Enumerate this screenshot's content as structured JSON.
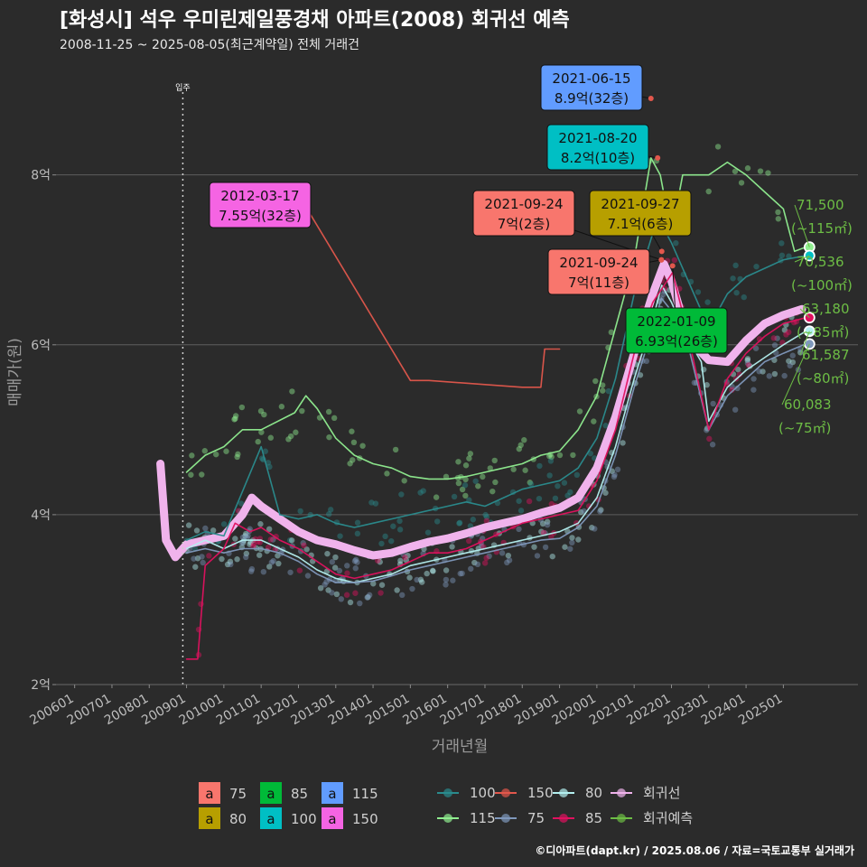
{
  "title": "[화성시] 석우 우미린제일풍경채 아파트(2008) 회귀선 예측",
  "subtitle": "2008-11-25 ~ 2025-08-05(최근계약일) 전체 거래건",
  "footer": "©디아파트(dapt.kr) / 2025.08.06 / 자료=국토교통부 실거래가",
  "chart_data": {
    "type": "line",
    "xlabel": "거래년월",
    "ylabel": "매매가(원)",
    "ylim": [
      2,
      9.4
    ],
    "xlim": [
      2005.5,
      2027.0
    ],
    "grid": true,
    "x_ticks": [
      "200601",
      "200701",
      "200801",
      "200901",
      "201001",
      "201101",
      "201201",
      "201301",
      "201401",
      "201501",
      "201601",
      "201701",
      "201801",
      "201901",
      "202001",
      "202101",
      "202201",
      "202301",
      "202401",
      "202501"
    ],
    "y_ticks": [
      {
        "value": 2,
        "label": "2억"
      },
      {
        "value": 4,
        "label": "4억"
      },
      {
        "value": 6,
        "label": "6억"
      },
      {
        "value": 8,
        "label": "8억"
      }
    ],
    "move_in": {
      "x": 2008.9,
      "label": "입주"
    },
    "callouts": [
      {
        "date": "2021-06-15",
        "text": "8.9억(32층)",
        "area": "115",
        "x": 2021.45,
        "y": 8.9
      },
      {
        "date": "2021-08-20",
        "text": "8.2억(10층)",
        "area": "100",
        "x": 2021.63,
        "y": 8.2
      },
      {
        "date": "2012-03-17",
        "text": "7.55억(32층)",
        "area": "150",
        "x": 2012.2,
        "y": 7.55
      },
      {
        "date": "2021-09-24",
        "text": "7억(2층)",
        "area": "75",
        "x": 2021.73,
        "y": 7.0
      },
      {
        "date": "2021-09-27",
        "text": "7.1억(6층)",
        "area": "80",
        "x": 2021.74,
        "y": 7.1
      },
      {
        "date": "2021-09-24",
        "text": "7억(11층)",
        "area": "75",
        "x": 2021.73,
        "y": 7.0
      },
      {
        "date": "2022-01-09",
        "text": "6.93억(26층)",
        "area": "85",
        "x": 2022.03,
        "y": 6.93
      }
    ],
    "predictions": [
      {
        "value": "71,500",
        "area": "(~115㎡)",
        "y": 7.15
      },
      {
        "value": "70,536",
        "area": "(~100㎡)",
        "y": 7.05
      },
      {
        "value": "63,180",
        "area": "(~85㎡)",
        "y": 6.32
      },
      {
        "value": "61,587",
        "area": "(~80㎡)",
        "y": 6.16
      },
      {
        "value": "60,083",
        "area": "(~75㎡)",
        "y": 6.01
      }
    ],
    "series": [
      {
        "name": "회귀선",
        "color": "#f0b3ec",
        "points": [
          [
            2008.3,
            4.6
          ],
          [
            2008.45,
            3.7
          ],
          [
            2008.7,
            3.5
          ],
          [
            2009.0,
            3.65
          ],
          [
            2009.5,
            3.7
          ],
          [
            2010.0,
            3.75
          ],
          [
            2010.5,
            4.0
          ],
          [
            2010.75,
            4.2
          ],
          [
            2011.0,
            4.1
          ],
          [
            2011.5,
            3.95
          ],
          [
            2012.0,
            3.8
          ],
          [
            2012.5,
            3.7
          ],
          [
            2013.0,
            3.65
          ],
          [
            2013.5,
            3.58
          ],
          [
            2014.0,
            3.52
          ],
          [
            2014.5,
            3.55
          ],
          [
            2015.0,
            3.62
          ],
          [
            2015.5,
            3.68
          ],
          [
            2016.0,
            3.72
          ],
          [
            2016.5,
            3.78
          ],
          [
            2017.0,
            3.85
          ],
          [
            2017.5,
            3.9
          ],
          [
            2018.0,
            3.95
          ],
          [
            2018.5,
            4.02
          ],
          [
            2019.0,
            4.08
          ],
          [
            2019.5,
            4.2
          ],
          [
            2020.0,
            4.55
          ],
          [
            2020.5,
            5.15
          ],
          [
            2021.0,
            5.9
          ],
          [
            2021.5,
            6.6
          ],
          [
            2021.8,
            6.95
          ],
          [
            2022.0,
            6.75
          ],
          [
            2022.3,
            6.3
          ],
          [
            2022.6,
            6.0
          ],
          [
            2023.0,
            5.82
          ],
          [
            2023.5,
            5.8
          ],
          [
            2024.0,
            6.05
          ],
          [
            2024.5,
            6.25
          ],
          [
            2025.0,
            6.35
          ],
          [
            2025.5,
            6.42
          ]
        ]
      },
      {
        "name": "115",
        "color": "#90ee90",
        "points": [
          [
            2009.0,
            4.5
          ],
          [
            2009.5,
            4.7
          ],
          [
            2010.0,
            4.8
          ],
          [
            2010.5,
            5.0
          ],
          [
            2011.0,
            5.0
          ],
          [
            2011.9,
            5.2
          ],
          [
            2012.2,
            5.4
          ],
          [
            2012.5,
            5.25
          ],
          [
            2013.0,
            4.9
          ],
          [
            2013.5,
            4.7
          ],
          [
            2014.0,
            4.6
          ],
          [
            2014.5,
            4.55
          ],
          [
            2015.0,
            4.45
          ],
          [
            2015.5,
            4.42
          ],
          [
            2016.0,
            4.42
          ],
          [
            2016.5,
            4.45
          ],
          [
            2017.0,
            4.5
          ],
          [
            2017.5,
            4.55
          ],
          [
            2018.0,
            4.6
          ],
          [
            2018.5,
            4.7
          ],
          [
            2019.0,
            4.75
          ],
          [
            2019.5,
            5.0
          ],
          [
            2020.0,
            5.4
          ],
          [
            2020.5,
            6.2
          ],
          [
            2021.0,
            7.0
          ],
          [
            2021.45,
            8.2
          ],
          [
            2021.7,
            8.0
          ],
          [
            2022.0,
            7.3
          ],
          [
            2022.3,
            8.0
          ],
          [
            2022.6,
            8.0
          ],
          [
            2023.0,
            8.0
          ],
          [
            2023.5,
            8.15
          ],
          [
            2024.0,
            8.0
          ],
          [
            2024.5,
            7.8
          ],
          [
            2025.0,
            7.6
          ],
          [
            2025.3,
            7.1
          ],
          [
            2025.6,
            7.15
          ]
        ]
      },
      {
        "name": "100",
        "color": "#2a8c8e",
        "points": [
          [
            2009.0,
            3.7
          ],
          [
            2009.5,
            3.8
          ],
          [
            2010.0,
            3.75
          ],
          [
            2011.0,
            4.8
          ],
          [
            2011.5,
            4.0
          ],
          [
            2012.0,
            3.95
          ],
          [
            2012.5,
            4.0
          ],
          [
            2013.0,
            3.9
          ],
          [
            2013.5,
            3.85
          ],
          [
            2014.0,
            3.9
          ],
          [
            2014.5,
            3.95
          ],
          [
            2015.0,
            4.0
          ],
          [
            2015.5,
            4.05
          ],
          [
            2016.0,
            4.1
          ],
          [
            2016.5,
            4.15
          ],
          [
            2017.0,
            4.1
          ],
          [
            2017.5,
            4.2
          ],
          [
            2018.0,
            4.3
          ],
          [
            2018.5,
            4.35
          ],
          [
            2019.0,
            4.4
          ],
          [
            2019.5,
            4.55
          ],
          [
            2020.0,
            4.9
          ],
          [
            2020.5,
            5.6
          ],
          [
            2021.0,
            6.6
          ],
          [
            2021.63,
            7.5
          ],
          [
            2022.0,
            7.2
          ],
          [
            2022.3,
            6.9
          ],
          [
            2023.0,
            6.2
          ],
          [
            2023.5,
            6.6
          ],
          [
            2024.0,
            6.8
          ],
          [
            2024.5,
            6.9
          ],
          [
            2025.0,
            7.0
          ],
          [
            2025.6,
            7.05
          ]
        ]
      },
      {
        "name": "150",
        "color": "#e2574c",
        "points": [
          [
            2012.0,
            7.55
          ],
          [
            2012.3,
            7.55
          ],
          [
            2015.0,
            5.58
          ],
          [
            2015.5,
            5.58
          ],
          [
            2018.0,
            5.5
          ],
          [
            2018.5,
            5.5
          ],
          [
            2018.6,
            5.95
          ],
          [
            2019.0,
            5.95
          ]
        ]
      },
      {
        "name": "80",
        "color": "#b4f0f0",
        "points": [
          [
            2009.0,
            3.6
          ],
          [
            2009.5,
            3.7
          ],
          [
            2010.0,
            3.6
          ],
          [
            2010.5,
            3.7
          ],
          [
            2011.0,
            3.7
          ],
          [
            2011.5,
            3.6
          ],
          [
            2012.0,
            3.5
          ],
          [
            2012.5,
            3.35
          ],
          [
            2013.0,
            3.25
          ],
          [
            2013.5,
            3.2
          ],
          [
            2014.0,
            3.25
          ],
          [
            2014.5,
            3.3
          ],
          [
            2015.0,
            3.4
          ],
          [
            2015.5,
            3.45
          ],
          [
            2016.0,
            3.5
          ],
          [
            2016.5,
            3.55
          ],
          [
            2017.0,
            3.6
          ],
          [
            2017.5,
            3.65
          ],
          [
            2018.0,
            3.7
          ],
          [
            2018.5,
            3.75
          ],
          [
            2019.0,
            3.8
          ],
          [
            2019.5,
            3.9
          ],
          [
            2020.0,
            4.2
          ],
          [
            2020.5,
            4.8
          ],
          [
            2021.0,
            5.6
          ],
          [
            2021.5,
            6.3
          ],
          [
            2021.74,
            6.7
          ],
          [
            2022.0,
            6.5
          ],
          [
            2022.4,
            6.1
          ],
          [
            2022.8,
            5.8
          ],
          [
            2023.0,
            5.1
          ],
          [
            2023.5,
            5.5
          ],
          [
            2024.0,
            5.7
          ],
          [
            2024.5,
            5.85
          ],
          [
            2025.0,
            6.0
          ],
          [
            2025.6,
            6.16
          ]
        ]
      },
      {
        "name": "75",
        "color": "#7f98bc",
        "points": [
          [
            2009.0,
            3.55
          ],
          [
            2009.5,
            3.6
          ],
          [
            2010.0,
            3.55
          ],
          [
            2010.5,
            3.6
          ],
          [
            2011.0,
            3.6
          ],
          [
            2011.5,
            3.55
          ],
          [
            2012.0,
            3.45
          ],
          [
            2012.5,
            3.3
          ],
          [
            2013.0,
            3.2
          ],
          [
            2013.5,
            3.2
          ],
          [
            2014.0,
            3.22
          ],
          [
            2014.5,
            3.28
          ],
          [
            2015.0,
            3.35
          ],
          [
            2015.5,
            3.4
          ],
          [
            2016.0,
            3.45
          ],
          [
            2016.5,
            3.5
          ],
          [
            2017.0,
            3.55
          ],
          [
            2017.5,
            3.6
          ],
          [
            2018.0,
            3.65
          ],
          [
            2018.5,
            3.7
          ],
          [
            2019.0,
            3.72
          ],
          [
            2019.5,
            3.85
          ],
          [
            2020.0,
            4.1
          ],
          [
            2020.5,
            4.7
          ],
          [
            2021.0,
            5.5
          ],
          [
            2021.5,
            6.2
          ],
          [
            2021.73,
            6.55
          ],
          [
            2022.0,
            6.4
          ],
          [
            2022.5,
            5.9
          ],
          [
            2023.0,
            5.0
          ],
          [
            2023.5,
            5.4
          ],
          [
            2024.0,
            5.6
          ],
          [
            2024.5,
            5.8
          ],
          [
            2025.0,
            5.9
          ],
          [
            2025.6,
            6.01
          ]
        ]
      },
      {
        "name": "85",
        "color": "#e0115f",
        "points": [
          [
            2009.0,
            2.3
          ],
          [
            2009.3,
            2.3
          ],
          [
            2009.5,
            3.4
          ],
          [
            2010.0,
            3.6
          ],
          [
            2010.3,
            3.9
          ],
          [
            2010.7,
            3.8
          ],
          [
            2011.0,
            3.85
          ],
          [
            2011.5,
            3.7
          ],
          [
            2012.0,
            3.6
          ],
          [
            2012.5,
            3.45
          ],
          [
            2013.0,
            3.3
          ],
          [
            2013.5,
            3.25
          ],
          [
            2014.0,
            3.3
          ],
          [
            2014.5,
            3.35
          ],
          [
            2015.0,
            3.45
          ],
          [
            2015.5,
            3.55
          ],
          [
            2016.0,
            3.55
          ],
          [
            2016.5,
            3.6
          ],
          [
            2017.0,
            3.7
          ],
          [
            2017.5,
            3.8
          ],
          [
            2018.0,
            3.9
          ],
          [
            2018.5,
            3.95
          ],
          [
            2019.0,
            4.0
          ],
          [
            2019.5,
            4.05
          ],
          [
            2020.0,
            4.4
          ],
          [
            2020.5,
            5.0
          ],
          [
            2021.0,
            5.9
          ],
          [
            2021.5,
            6.5
          ],
          [
            2022.03,
            6.85
          ],
          [
            2022.4,
            6.2
          ],
          [
            2023.0,
            5.0
          ],
          [
            2023.5,
            5.6
          ],
          [
            2024.0,
            5.9
          ],
          [
            2024.5,
            6.1
          ],
          [
            2025.0,
            6.25
          ],
          [
            2025.6,
            6.32
          ]
        ]
      }
    ],
    "legend": {
      "label_groups": [
        {
          "name": "75",
          "color": "#f8766d"
        },
        {
          "name": "80",
          "color": "#b79f00"
        },
        {
          "name": "85",
          "color": "#00ba38"
        },
        {
          "name": "100",
          "color": "#00bfc4"
        },
        {
          "name": "115",
          "color": "#619cff"
        },
        {
          "name": "150",
          "color": "#f564e3"
        }
      ],
      "label_glyph": "a",
      "line_groups": [
        {
          "name": "100",
          "color": "#2a8c8e"
        },
        {
          "name": "115",
          "color": "#90ee90"
        },
        {
          "name": "150",
          "color": "#e2574c"
        },
        {
          "name": "75",
          "color": "#7f98bc"
        },
        {
          "name": "80",
          "color": "#b4f0f0"
        },
        {
          "name": "85",
          "color": "#e0115f"
        },
        {
          "name": "회귀선",
          "color": "#f0b3ec"
        },
        {
          "name": "회귀예측",
          "color": "#6dbd45"
        }
      ]
    }
  }
}
